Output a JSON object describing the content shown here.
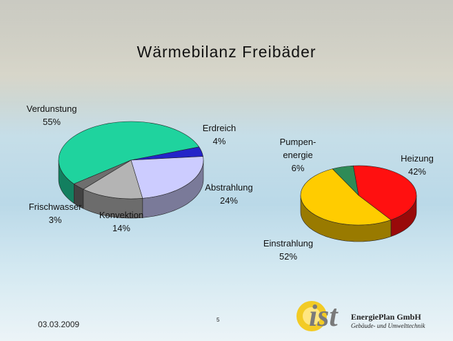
{
  "slide": {
    "title": "Wärmebilanz Freibäder",
    "date": "03.03.2009",
    "page": "5",
    "logo": {
      "mark": "ist",
      "company": "EnergiePlan GmbH",
      "tagline": "Gebäude- und Umwelttechnik"
    }
  },
  "chart_data": [
    {
      "type": "pie",
      "categories": [
        "Verdunstung",
        "Erdreich",
        "Abstrahlung",
        "Konvektion",
        "Frischwasser"
      ],
      "values": [
        55,
        4,
        24,
        14,
        3
      ],
      "value_labels": [
        "55%",
        "4%",
        "24%",
        "14%",
        "3%"
      ],
      "colors": [
        "#1fd39e",
        "#2424c8",
        "#ccccff",
        "#b4b4b4",
        "#6e6e6e"
      ]
    },
    {
      "type": "pie",
      "categories": [
        "Heizung",
        "Pumpen-\nenergie",
        "Einstrahlung"
      ],
      "values": [
        42,
        6,
        52
      ],
      "value_labels": [
        "42%",
        "6%",
        "52%"
      ],
      "colors": [
        "#ff1010",
        "#2e8b57",
        "#ffcc00"
      ]
    }
  ]
}
